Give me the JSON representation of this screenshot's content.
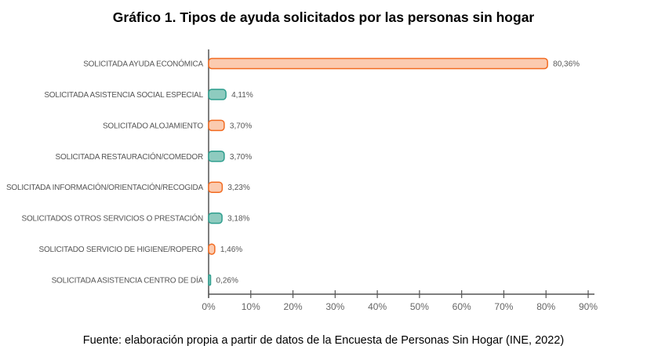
{
  "chart_data": {
    "type": "bar",
    "orientation": "horizontal",
    "title": "Gráfico 1. Tipos de ayuda solicitados por las personas sin hogar",
    "source": "Fuente: elaboración propia a partir de datos de la Encuesta de Personas Sin Hogar (INE, 2022)",
    "categories": [
      "SOLICITADA AYUDA ECONÓMICA",
      "SOLICITADA ASISTENCIA SOCIAL ESPECIAL",
      "SOLICITADO ALOJAMIENTO",
      "SOLICITADA RESTAURACIÓN/COMEDOR",
      "SOLICITADA INFORMACIÓN/ORIENTACIÓN/RECOGIDA",
      "SOLICITADOS OTROS SERVICIOS O PRESTACIÓN",
      "SOLICITADO SERVICIO DE HIGIENE/ROPERO",
      "SOLICITADA ASISTENCIA CENTRO DE DÍA"
    ],
    "values": [
      80.36,
      4.11,
      3.7,
      3.7,
      3.23,
      3.18,
      1.46,
      0.26
    ],
    "value_labels": [
      "80,36%",
      "4,11%",
      "3,70%",
      "3,70%",
      "3,23%",
      "3,18%",
      "1,46%",
      "0,26%"
    ],
    "xlim": [
      0,
      90
    ],
    "xticks": [
      "0%",
      "10%",
      "20%",
      "30%",
      "40%",
      "50%",
      "60%",
      "70%",
      "80%",
      "90%"
    ],
    "grid": false,
    "colors": {
      "orange_fill": "#fbcbb0",
      "orange_stroke": "#f26b21",
      "teal_fill": "#8ecbbf",
      "teal_stroke": "#2e9e8e"
    },
    "bar_color_pattern": [
      "orange",
      "teal"
    ]
  }
}
